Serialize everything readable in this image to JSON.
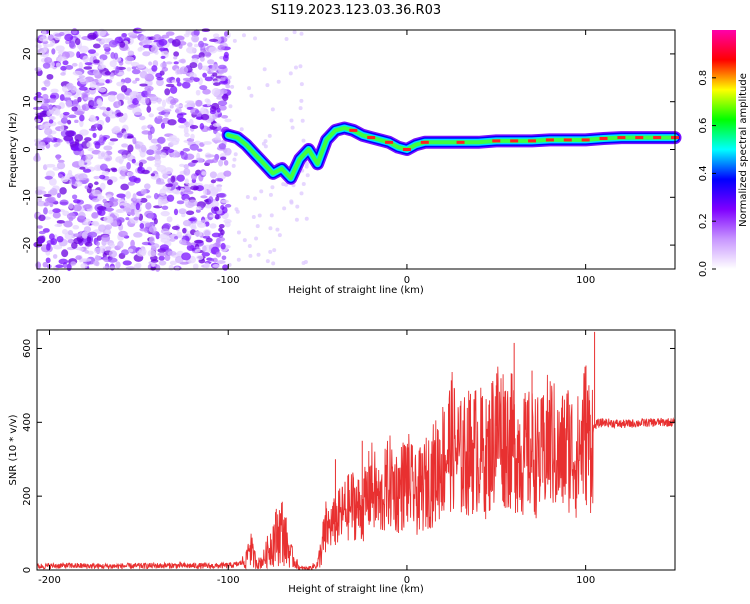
{
  "title": "S119.2023.123.03.36.R03",
  "chart_data": [
    {
      "type": "heatmap",
      "xlabel": "Height of straight line (km)",
      "ylabel": "Frequency (Hz)",
      "xlim": [
        -207,
        150
      ],
      "ylim": [
        -25,
        25
      ],
      "x_ticks": [
        -200,
        -100,
        0,
        100
      ],
      "y_ticks": [
        -20,
        -10,
        0,
        10,
        20
      ],
      "grid": false,
      "colorbar": {
        "label": "Normalized spectral amplitude",
        "range": [
          0,
          1
        ],
        "ticks": [
          "0.0",
          "0.2",
          "0.4",
          "0.6",
          "0.8"
        ],
        "colors": [
          "#ffffff",
          "#c896ff",
          "#7f00ff",
          "#0000ff",
          "#00ffff",
          "#00ff00",
          "#ffff00",
          "#ff0000",
          "#ff00aa"
        ]
      },
      "ridge": {
        "x": [
          -100,
          -95,
          -90,
          -85,
          -80,
          -75,
          -70,
          -65,
          -60,
          -55,
          -50,
          -45,
          -40,
          -35,
          -30,
          -25,
          -20,
          -15,
          -10,
          -5,
          0,
          5,
          10,
          20,
          30,
          40,
          50,
          60,
          70,
          80,
          90,
          100,
          110,
          120,
          130,
          140,
          150
        ],
        "y": [
          3,
          2.5,
          1,
          -1,
          -3,
          -5,
          -4,
          -6,
          -2,
          0,
          -3,
          2,
          4,
          4.5,
          4,
          3,
          2.5,
          2,
          1.5,
          0.5,
          0,
          1,
          1.5,
          1.5,
          1.5,
          1.5,
          1.8,
          1.8,
          1.8,
          2,
          2,
          2,
          2.3,
          2.5,
          2.5,
          2.5,
          2.5
        ]
      }
    },
    {
      "type": "line",
      "xlabel": "Height of straight line (km)",
      "ylabel": "SNR (10 * v/v)",
      "xlim": [
        -207,
        150
      ],
      "ylim": [
        0,
        650
      ],
      "x_ticks": [
        -200,
        -100,
        0,
        100
      ],
      "y_ticks": [
        0,
        200,
        400,
        600
      ],
      "grid": false,
      "color": "#e83030",
      "series": [
        {
          "x": [
            -207,
            -190,
            -170,
            -150,
            -130,
            -110,
            -100,
            -95,
            -90,
            -88,
            -86,
            -83,
            -80,
            -75,
            -70,
            -65,
            -60,
            -55,
            -50,
            -45,
            -40,
            -35,
            -30,
            -25,
            -20,
            -15,
            -10,
            -5,
            0,
            5,
            10,
            15,
            20,
            25,
            30,
            35,
            40,
            45,
            50,
            55,
            60,
            65,
            70,
            75,
            80,
            85,
            90,
            95,
            100,
            103,
            104,
            106,
            110,
            120,
            130,
            140,
            150
          ],
          "y": [
            10,
            12,
            10,
            11,
            12,
            11,
            12,
            15,
            25,
            75,
            35,
            18,
            30,
            80,
            110,
            40,
            5,
            5,
            15,
            110,
            130,
            160,
            180,
            160,
            230,
            180,
            240,
            210,
            250,
            200,
            230,
            260,
            300,
            350,
            300,
            320,
            330,
            300,
            390,
            360,
            340,
            310,
            320,
            300,
            360,
            300,
            340,
            300,
            380,
            330,
            380,
            395,
            400,
            395,
            398,
            400,
            400
          ]
        }
      ],
      "spikes": {
        "x": [
          -40,
          -25,
          35,
          50,
          60,
          70,
          105
        ],
        "y": [
          300,
          350,
          460,
          500,
          615,
          540,
          645
        ]
      }
    }
  ]
}
